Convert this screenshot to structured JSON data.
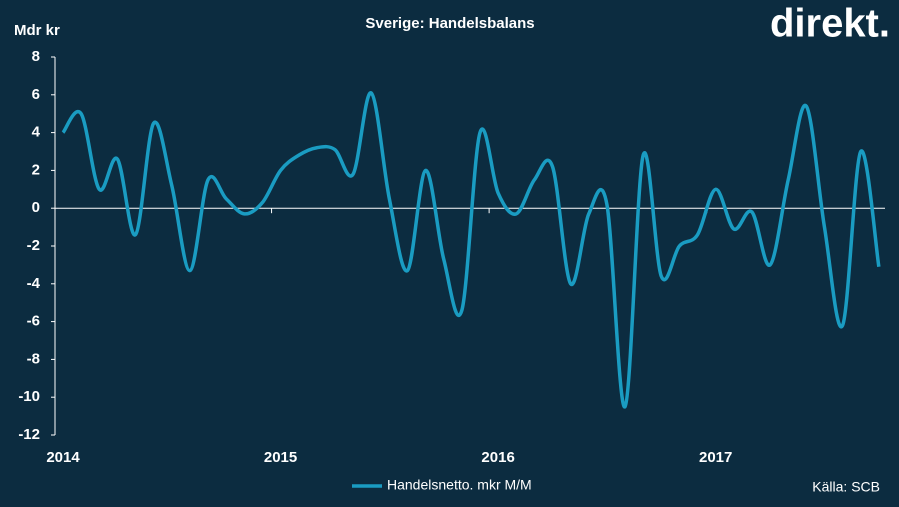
{
  "chart_data": {
    "type": "line",
    "title": "Sverige: Handelsbalans",
    "y_label": "Mdr kr",
    "logo": "direkt.",
    "source": "Källa: SCB",
    "categories": [
      "2014",
      null,
      null,
      null,
      null,
      null,
      null,
      null,
      null,
      null,
      null,
      null,
      "2015",
      null,
      null,
      null,
      null,
      null,
      null,
      null,
      null,
      null,
      null,
      null,
      "2016",
      null,
      null,
      null,
      null,
      null,
      null,
      null,
      null,
      null,
      null,
      null,
      "2017",
      null,
      null,
      null,
      null,
      null,
      null,
      null,
      null,
      null
    ],
    "series": [
      {
        "name": "Handelsnetto. mkr M/M",
        "color": "#1a9cc2",
        "values": [
          4.0,
          5.0,
          1.0,
          2.6,
          -1.4,
          4.5,
          1.2,
          -3.3,
          1.5,
          0.5,
          -0.3,
          0.3,
          2.0,
          2.8,
          3.2,
          3.1,
          1.8,
          6.1,
          0.5,
          -3.3,
          2.0,
          -2.7,
          -5.4,
          4.0,
          0.8,
          -0.3,
          1.5,
          2.2,
          -4.0,
          -0.3,
          0.2,
          -10.5,
          2.8,
          -3.6,
          -2.0,
          -1.4,
          1.0,
          -1.1,
          -0.2,
          -3.0,
          1.5,
          5.4,
          -1.0,
          -6.2,
          3.0,
          -3.1
        ]
      }
    ],
    "ylim": [
      -12,
      8
    ],
    "yticks": [
      -12,
      -10,
      -8,
      -6,
      -4,
      -2,
      0,
      2,
      4,
      6,
      8
    ],
    "legend": "bottom"
  }
}
